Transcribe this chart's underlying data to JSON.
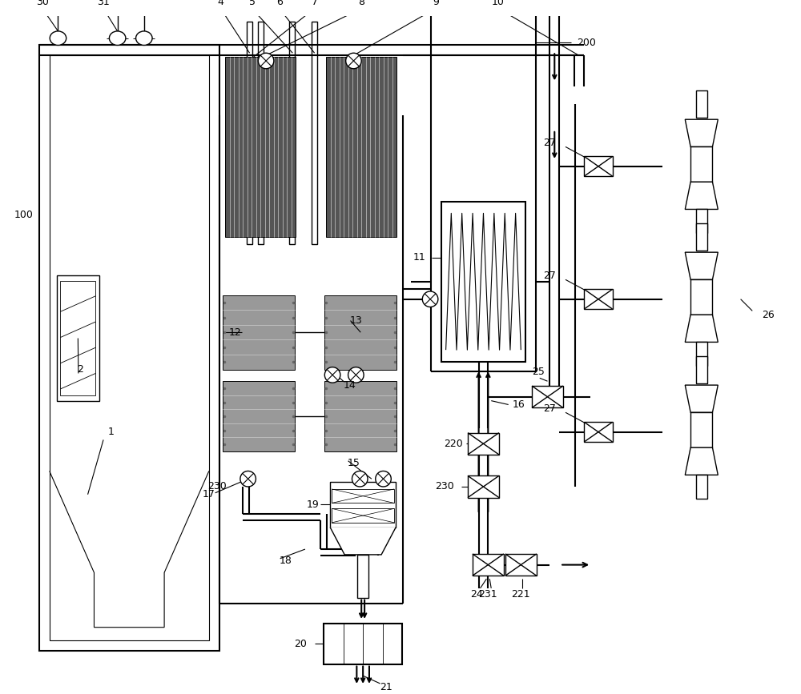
{
  "bg_color": "#ffffff",
  "lw": 1.5,
  "lw2": 1.0
}
